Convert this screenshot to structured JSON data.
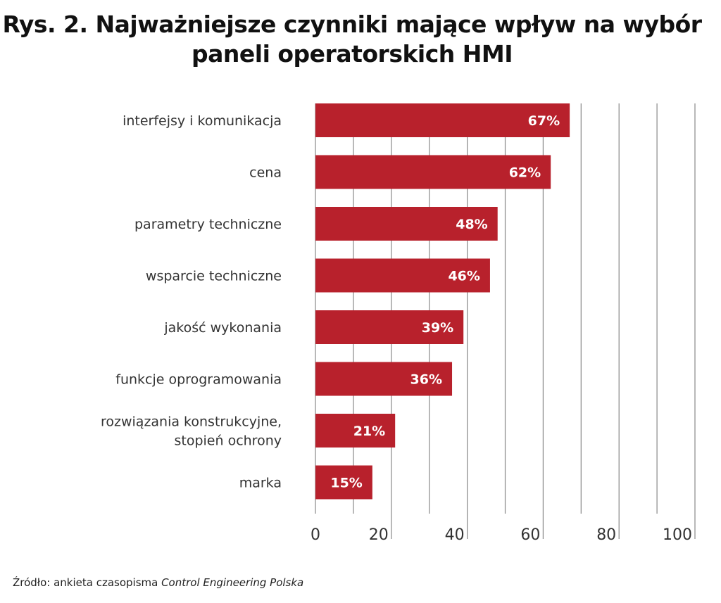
{
  "chart_data": {
    "type": "bar",
    "orientation": "horizontal",
    "title_lines": [
      "Rys. 2. Najważniejsze czynniki mające wpływ na wybór",
      "paneli operatorskich HMI"
    ],
    "categories": [
      [
        "interfejsy i komunikacja"
      ],
      [
        "cena"
      ],
      [
        "parametry techniczne"
      ],
      [
        "wsparcie techniczne"
      ],
      [
        "jakość wykonania"
      ],
      [
        "funkcje oprogramowania"
      ],
      [
        "rozwiązania konstrukcyjne,",
        "stopień ochrony"
      ],
      [
        "marka"
      ]
    ],
    "values": [
      67,
      62,
      48,
      46,
      39,
      36,
      21,
      15
    ],
    "data_labels": [
      "67%",
      "62%",
      "48%",
      "46%",
      "39%",
      "36%",
      "21%",
      "15%"
    ],
    "xlim": [
      0,
      100
    ],
    "xticks": [
      "0",
      "20",
      "40",
      "60",
      "80",
      "100"
    ],
    "grid": true,
    "bar_color": "#b8212c"
  },
  "source": {
    "prefix": "Źródło: ankieta czasopisma ",
    "publication": "Control Engineering Polska"
  }
}
